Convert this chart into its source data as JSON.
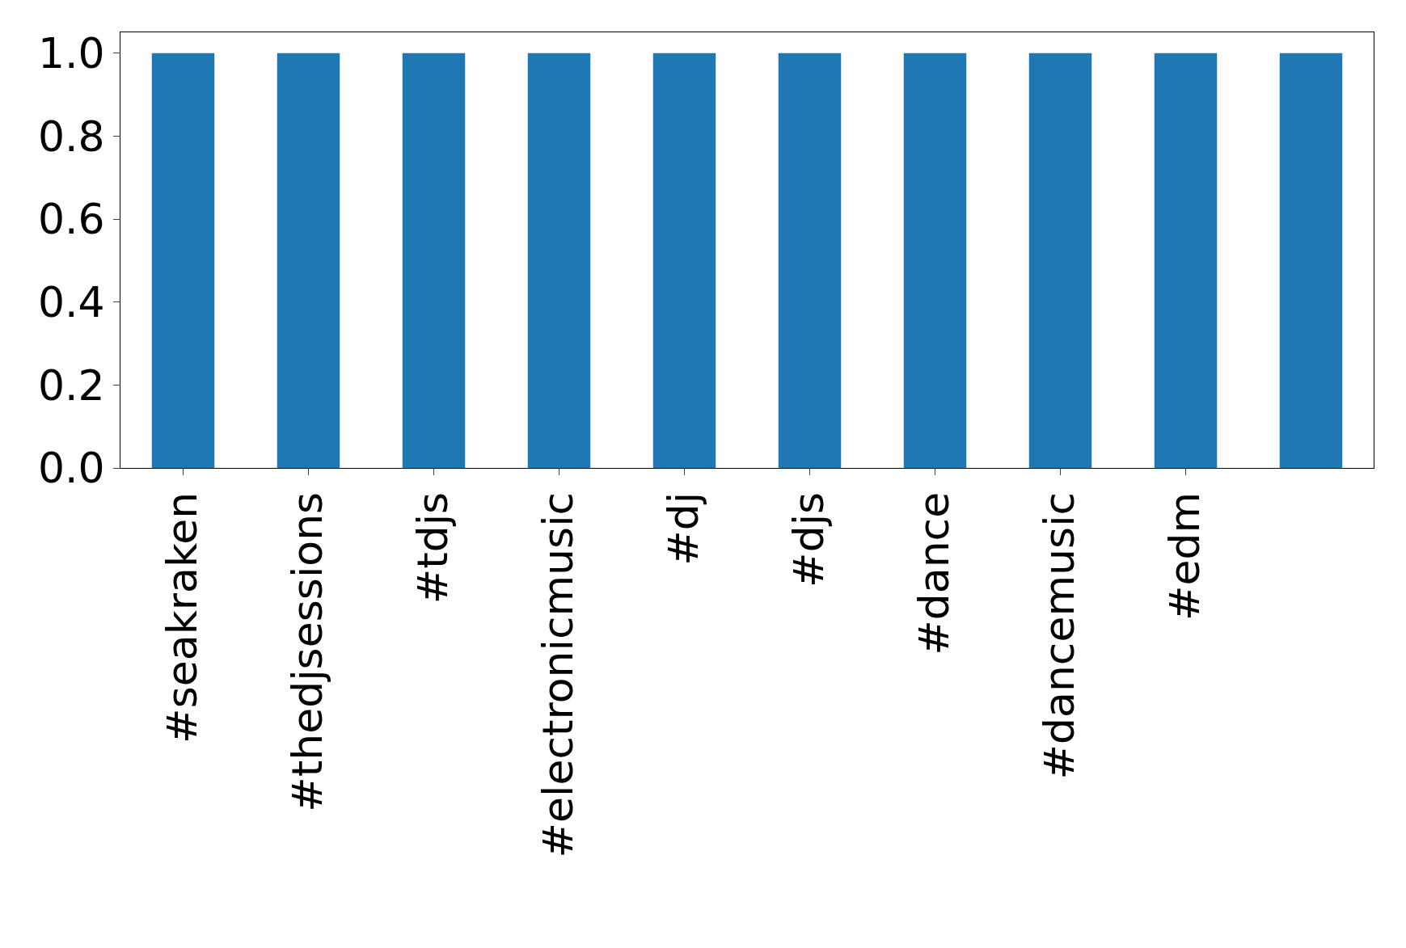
{
  "chart_data": {
    "type": "bar",
    "categories": [
      "#seakraken",
      "#thedjsessions",
      "#tdjs",
      "#electronicmusic",
      "#dj",
      "#djs",
      "#dance",
      "#dancemusic",
      "#edm",
      null
    ],
    "values": [
      1.0,
      1.0,
      1.0,
      1.0,
      1.0,
      1.0,
      1.0,
      1.0,
      1.0,
      1.0
    ],
    "color": "#1f77b4",
    "ylim": [
      0,
      1.05
    ],
    "yticks": [
      {
        "value": 0,
        "label": "0.0"
      },
      0.2,
      0.4,
      0.6,
      0.8,
      {
        "value": 1,
        "label": "1.0"
      }
    ]
  }
}
